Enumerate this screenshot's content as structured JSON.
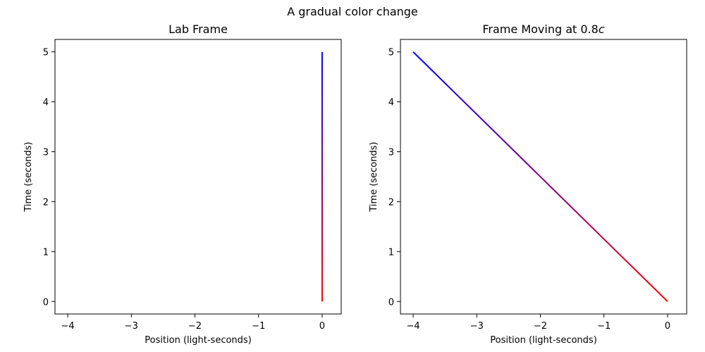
{
  "figure": {
    "title": "A gradual color change"
  },
  "colors": {
    "start": "#ff0000",
    "end": "#0000ff",
    "axes": "#000000"
  },
  "chart_data": [
    {
      "type": "line",
      "title": "Lab Frame",
      "title_italic_suffix": "",
      "xlabel": "Position (light-seconds)",
      "ylabel": "Time (seconds)",
      "xlim": [
        -4.2,
        0.3
      ],
      "ylim": [
        -0.25,
        5.25
      ],
      "xticks": [
        -4,
        -3,
        -2,
        -1,
        0
      ],
      "yticks": [
        0,
        1,
        2,
        3,
        4,
        5
      ],
      "grid": false,
      "series": [
        {
          "x": [
            0,
            0
          ],
          "y": [
            0,
            5
          ],
          "color_gradient": [
            "#ff0000",
            "#0000ff"
          ]
        }
      ]
    },
    {
      "type": "line",
      "title": "Frame Moving at 0.8",
      "title_italic_suffix": "c",
      "xlabel": "Position (light-seconds)",
      "ylabel": "Time (seconds)",
      "xlim": [
        -4.2,
        0.3
      ],
      "ylim": [
        -0.25,
        5.25
      ],
      "xticks": [
        -4,
        -3,
        -2,
        -1,
        0
      ],
      "yticks": [
        0,
        1,
        2,
        3,
        4,
        5
      ],
      "grid": false,
      "series": [
        {
          "x": [
            0,
            -4
          ],
          "y": [
            0,
            5
          ],
          "color_gradient": [
            "#ff0000",
            "#0000ff"
          ]
        }
      ]
    }
  ]
}
